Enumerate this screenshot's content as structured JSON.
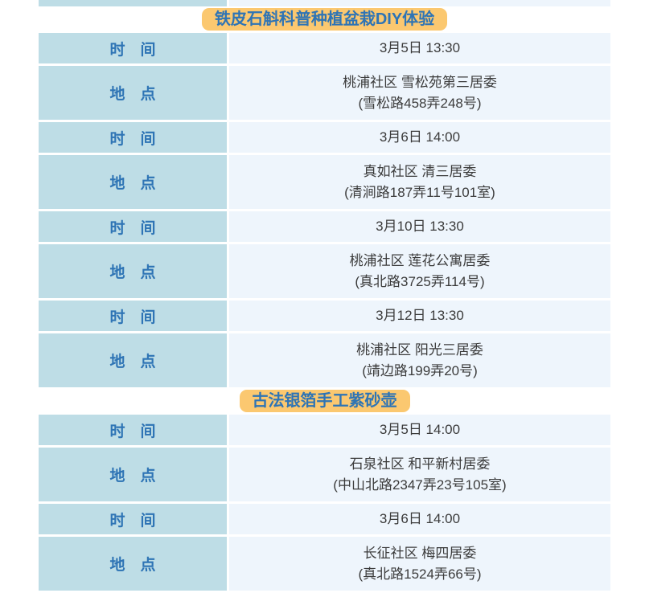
{
  "colors": {
    "header_cell_bg": "#bedde6",
    "value_cell_bg": "#eef5fc",
    "title_pill_bg": "#fbc870",
    "title_text": "#2e74b5",
    "label_text": "#2e74b5",
    "value_text": "#3b3b3b"
  },
  "labels": {
    "time": "时　间",
    "place": "地　点"
  },
  "sections": [
    {
      "title": "铁皮石斛科普种植盆栽DIY体验",
      "entries": [
        {
          "time": "3月5日 13:30",
          "place_line1": "桃浦社区 雪松苑第三居委",
          "place_line2": "(雪松路458弄248号)"
        },
        {
          "time": "3月6日 14:00",
          "place_line1": "真如社区 清三居委",
          "place_line2": "(清涧路187弄11号101室)"
        },
        {
          "time": "3月10日 13:30",
          "place_line1": "桃浦社区 莲花公寓居委",
          "place_line2": "(真北路3725弄114号)"
        },
        {
          "time": "3月12日 13:30",
          "place_line1": "桃浦社区 阳光三居委",
          "place_line2": "(靖边路199弄20号)"
        }
      ]
    },
    {
      "title": "古法银箔手工紫砂壶",
      "entries": [
        {
          "time": "3月5日 14:00",
          "place_line1": "石泉社区 和平新村居委",
          "place_line2": "(中山北路2347弄23号105室)"
        },
        {
          "time": "3月6日 14:00",
          "place_line1": "长征社区 梅四居委",
          "place_line2": "(真北路1524弄66号)"
        }
      ]
    }
  ]
}
